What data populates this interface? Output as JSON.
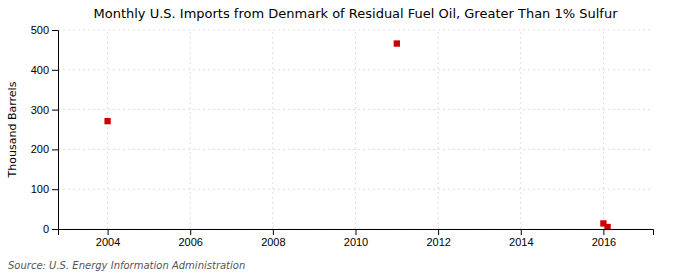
{
  "chart_data": {
    "type": "scatter",
    "title": "Monthly U.S. Imports from Denmark of Residual Fuel Oil, Greater Than 1% Sulfur",
    "y_label": "Thousand Barrels",
    "annotations": [
      "Source: U.S. Energy Information Administration"
    ],
    "x": [
      2004.0,
      2011.0,
      2016.0,
      2016.1
    ],
    "values": [
      271,
      466,
      14,
      5
    ],
    "color": "#cc0000",
    "marker": "square",
    "xlim": [
      2002.8,
      2017.2
    ],
    "ylim": [
      0,
      500
    ],
    "xticks": [
      2004,
      2006,
      2008,
      2010,
      2012,
      2014,
      2016
    ],
    "yticks": [
      0,
      100,
      200,
      300,
      400,
      500
    ],
    "grid": true
  }
}
